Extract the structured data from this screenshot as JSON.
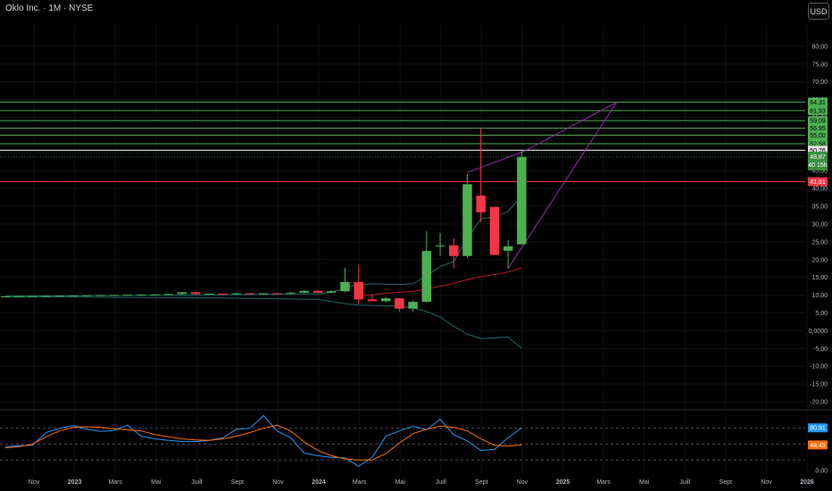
{
  "header": {
    "title": "Oklo Inc. · 1M · NYSE",
    "currency": "USD"
  },
  "colors": {
    "background": "#000000",
    "up": "#4caf50",
    "down": "#f23645",
    "level": "#4caf50",
    "resistance": "#f23645",
    "channel": "#9c27b0",
    "pink_ma": "#b71c1c",
    "teal_band": "#1b6b64",
    "stoch_k": "#2196f3",
    "stoch_d": "#ff6d00",
    "grid": "#2a2e39"
  },
  "chart_data": [
    {
      "type": "candlestick",
      "title": "Oklo Inc. · 1M · NYSE",
      "ylim": [
        -22,
        86
      ],
      "y_ticks": [
        "80,00",
        "75,00",
        "70,00",
        "65,00",
        "60,00",
        "55,00",
        "50,00",
        "45,00",
        "40,00",
        "35,00",
        "30,00",
        "25,00",
        "20,00",
        "15,00",
        "10,00",
        "5,00",
        "0,0000",
        "-5,00",
        "-10,00",
        "-15,00",
        "-20,00"
      ],
      "x_ticks": [
        {
          "label": "Nov",
          "bold": false
        },
        {
          "label": "2023",
          "bold": true
        },
        {
          "label": "Mars",
          "bold": false
        },
        {
          "label": "Mai",
          "bold": false
        },
        {
          "label": "Juill",
          "bold": false
        },
        {
          "label": "Sept",
          "bold": false
        },
        {
          "label": "Nov",
          "bold": false
        },
        {
          "label": "2024",
          "bold": true
        },
        {
          "label": "Mars",
          "bold": false
        },
        {
          "label": "Mai",
          "bold": false
        },
        {
          "label": "Juill",
          "bold": false
        },
        {
          "label": "Sept",
          "bold": false
        },
        {
          "label": "Nov",
          "bold": false
        },
        {
          "label": "2025",
          "bold": true
        },
        {
          "label": "Mars",
          "bold": false
        },
        {
          "label": "Mai",
          "bold": false
        },
        {
          "label": "Juill",
          "bold": false
        },
        {
          "label": "Sept",
          "bold": false
        },
        {
          "label": "Nov",
          "bold": false
        },
        {
          "label": "2026",
          "bold": true
        }
      ],
      "candles": [
        {
          "m": 0,
          "o": 9.6,
          "h": 9.7,
          "l": 9.5,
          "c": 9.65
        },
        {
          "m": 1,
          "o": 9.65,
          "h": 9.75,
          "l": 9.55,
          "c": 9.7
        },
        {
          "m": 2,
          "o": 9.7,
          "h": 9.8,
          "l": 9.6,
          "c": 9.75
        },
        {
          "m": 3,
          "o": 9.75,
          "h": 9.85,
          "l": 9.65,
          "c": 9.8
        },
        {
          "m": 4,
          "o": 9.8,
          "h": 9.9,
          "l": 9.7,
          "c": 9.85
        },
        {
          "m": 5,
          "o": 9.85,
          "h": 9.95,
          "l": 9.75,
          "c": 9.9
        },
        {
          "m": 6,
          "o": 9.9,
          "h": 10.0,
          "l": 9.8,
          "c": 9.95
        },
        {
          "m": 7,
          "o": 9.95,
          "h": 10.1,
          "l": 9.85,
          "c": 10.0
        },
        {
          "m": 8,
          "o": 10.0,
          "h": 10.15,
          "l": 9.9,
          "c": 10.05
        },
        {
          "m": 9,
          "o": 10.05,
          "h": 10.2,
          "l": 9.95,
          "c": 10.1
        },
        {
          "m": 10,
          "o": 10.1,
          "h": 10.25,
          "l": 10.0,
          "c": 10.15
        },
        {
          "m": 11,
          "o": 10.15,
          "h": 10.3,
          "l": 10.05,
          "c": 10.2
        },
        {
          "m": 12,
          "o": 10.2,
          "h": 10.4,
          "l": 10.1,
          "c": 10.3
        },
        {
          "m": 13,
          "o": 10.3,
          "h": 10.9,
          "l": 10.2,
          "c": 10.8
        },
        {
          "m": 14,
          "o": 10.8,
          "h": 10.95,
          "l": 10.1,
          "c": 10.3
        },
        {
          "m": 15,
          "o": 10.3,
          "h": 10.5,
          "l": 10.1,
          "c": 10.4
        },
        {
          "m": 16,
          "o": 10.4,
          "h": 10.5,
          "l": 10.2,
          "c": 10.3
        },
        {
          "m": 17,
          "o": 10.3,
          "h": 10.6,
          "l": 10.1,
          "c": 10.5
        },
        {
          "m": 18,
          "o": 10.5,
          "h": 10.7,
          "l": 10.3,
          "c": 10.4
        },
        {
          "m": 19,
          "o": 10.4,
          "h": 10.6,
          "l": 10.2,
          "c": 10.5
        },
        {
          "m": 20,
          "o": 10.5,
          "h": 10.7,
          "l": 10.3,
          "c": 10.45
        },
        {
          "m": 21,
          "o": 10.45,
          "h": 10.9,
          "l": 10.3,
          "c": 10.7
        },
        {
          "m": 22,
          "o": 10.7,
          "h": 11.4,
          "l": 10.5,
          "c": 11.2
        },
        {
          "m": 23,
          "o": 11.2,
          "h": 11.5,
          "l": 10.6,
          "c": 10.7
        },
        {
          "m": 24,
          "o": 10.7,
          "h": 11.4,
          "l": 10.5,
          "c": 11.1
        },
        {
          "m": 25,
          "o": 11.1,
          "h": 17.6,
          "l": 10.8,
          "c": 13.7
        },
        {
          "m": 26,
          "o": 13.7,
          "h": 18.5,
          "l": 7.5,
          "c": 8.8
        },
        {
          "m": 27,
          "o": 8.8,
          "h": 10.2,
          "l": 8.3,
          "c": 8.3
        },
        {
          "m": 28,
          "o": 8.3,
          "h": 9.5,
          "l": 7.9,
          "c": 9.1
        },
        {
          "m": 29,
          "o": 9.1,
          "h": 9.2,
          "l": 5.3,
          "c": 6.2
        },
        {
          "m": 30,
          "o": 6.2,
          "h": 8.5,
          "l": 5.3,
          "c": 8.1
        },
        {
          "m": 31,
          "o": 8.1,
          "h": 28.0,
          "l": 8.0,
          "c": 22.4
        },
        {
          "m": 32,
          "o": 24.0,
          "h": 27.5,
          "l": 21.0,
          "c": 24.0
        },
        {
          "m": 33,
          "o": 24.0,
          "h": 26.0,
          "l": 17.5,
          "c": 21.0
        },
        {
          "m": 34,
          "o": 21.0,
          "h": 44.0,
          "l": 20.5,
          "c": 41.2
        },
        {
          "m": 35,
          "o": 38.0,
          "h": 57.0,
          "l": 30.5,
          "c": 33.3
        },
        {
          "m": 36,
          "o": 34.8,
          "h": 35.0,
          "l": 21.2,
          "c": 21.3
        },
        {
          "m": 37,
          "o": 22.5,
          "h": 25.5,
          "l": 17.5,
          "c": 23.7
        },
        {
          "m": 38,
          "o": 24.3,
          "h": 50.5,
          "l": 24.3,
          "c": 48.87
        }
      ],
      "horizontal_levels": [
        {
          "label": "64,31",
          "value": 64.31,
          "color": "#4caf50"
        },
        {
          "label": "61,93",
          "value": 61.93,
          "color": "#4caf50"
        },
        {
          "label": "59,09",
          "value": 59.09,
          "color": "#4caf50"
        },
        {
          "label": "56,95",
          "value": 56.95,
          "color": "#4caf50"
        },
        {
          "label": "55,00",
          "value": 55.0,
          "color": "#4caf50"
        },
        {
          "label": "52,58",
          "value": 52.58,
          "color": "#4caf50"
        },
        {
          "label": "50,76",
          "value": 50.76,
          "color": "#e0e0e0"
        },
        {
          "label": "41,91",
          "value": 41.91,
          "color": "#f23645"
        }
      ],
      "last_price": {
        "label": "48,87",
        "countdown": "40 15h",
        "value": 48.87
      },
      "channel_lines": [
        {
          "x": [
            34,
            38.2,
            45
          ],
          "y": [
            44.5,
            50.5,
            64.3
          ]
        },
        {
          "x": [
            37,
            45
          ],
          "y": [
            17.5,
            64.3
          ]
        }
      ],
      "pink_ma": {
        "m": [
          26,
          27,
          28,
          29,
          30,
          31,
          32,
          33,
          34,
          35,
          36,
          37,
          38
        ],
        "v": [
          9.8,
          10.1,
          10.5,
          10.8,
          11.1,
          11.7,
          12.5,
          13.3,
          14.4,
          15.2,
          15.8,
          16.5,
          17.7
        ]
      },
      "teal_upper": {
        "m": [
          0,
          4,
          8,
          12,
          16,
          20,
          23,
          24,
          25,
          26,
          27,
          28,
          29,
          30,
          31,
          32,
          33,
          34,
          35,
          36,
          37,
          38
        ],
        "v": [
          9.8,
          9.8,
          9.9,
          10.0,
          10.1,
          10.2,
          10.4,
          10.8,
          12.0,
          13.0,
          13.2,
          13.1,
          13.0,
          13.2,
          15.5,
          18.0,
          19.5,
          26.0,
          31.5,
          32.0,
          33.5,
          38.0
        ]
      },
      "teal_lower": {
        "m": [
          0,
          4,
          8,
          12,
          16,
          20,
          23,
          24,
          25,
          26,
          27,
          28,
          29,
          30,
          31,
          32,
          33,
          34,
          35,
          36,
          37,
          38
        ],
        "v": [
          9.5,
          9.5,
          9.4,
          9.3,
          9.2,
          9.0,
          8.8,
          8.2,
          7.6,
          7.2,
          7.1,
          7.0,
          6.8,
          6.4,
          5.4,
          3.9,
          1.2,
          -1.0,
          -2.2,
          -2.0,
          -1.8,
          -5.0
        ]
      }
    },
    {
      "type": "line",
      "title": "",
      "ylim": [
        -5,
        110
      ],
      "y_ticks": [
        "0,00"
      ],
      "dashed_levels": [
        80,
        50,
        20
      ],
      "series": [
        {
          "name": "",
          "color": "#2196f3",
          "value_label": "80,91",
          "m": [
            0,
            1,
            2,
            3,
            4,
            5,
            6,
            7,
            8,
            9,
            10,
            11,
            12,
            13,
            14,
            15,
            16,
            17,
            18,
            19,
            20,
            21,
            22,
            23,
            24,
            25,
            26,
            27,
            28,
            29,
            30,
            31,
            32,
            33,
            34,
            35,
            36,
            37,
            38
          ],
          "v": [
            45,
            47,
            48,
            72,
            80,
            85,
            78,
            74,
            76,
            86,
            65,
            60,
            57,
            55,
            55,
            57,
            62,
            78,
            80,
            104,
            75,
            62,
            33,
            28,
            25,
            24,
            8,
            25,
            65,
            75,
            84,
            77,
            97,
            68,
            56,
            38,
            40,
            62,
            80.91
          ]
        },
        {
          "name": "",
          "color": "#ff6d00",
          "value_label": "48,45",
          "m": [
            0,
            1,
            2,
            3,
            4,
            5,
            6,
            7,
            8,
            9,
            10,
            11,
            12,
            13,
            14,
            15,
            16,
            17,
            18,
            19,
            20,
            21,
            22,
            23,
            24,
            25,
            26,
            27,
            28,
            29,
            30,
            31,
            32,
            33,
            34,
            35,
            36,
            37,
            38
          ],
          "v": [
            43,
            45,
            50,
            64,
            75,
            82,
            83,
            82,
            79,
            77,
            75,
            68,
            64,
            60,
            58,
            57,
            60,
            65,
            72,
            80,
            86,
            75,
            54,
            38,
            28,
            22,
            20,
            20,
            32,
            52,
            70,
            78,
            84,
            82,
            75,
            60,
            48,
            46,
            48.45
          ]
        }
      ]
    }
  ]
}
